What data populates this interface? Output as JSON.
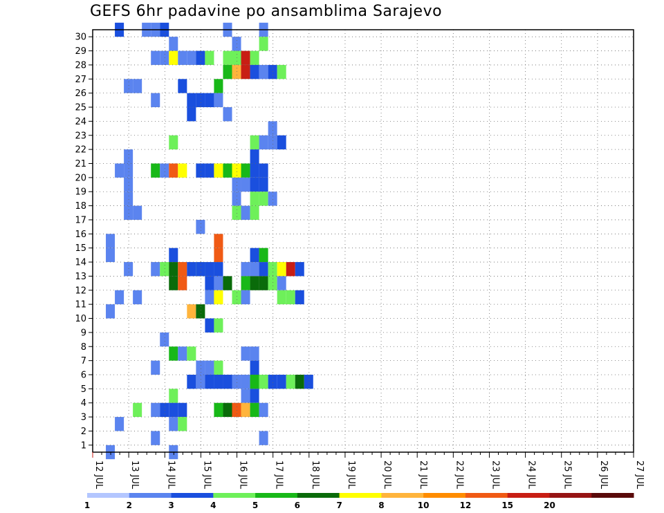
{
  "title": "GEFS 6hr padavine po ansamblima Sarajevo",
  "chart_data": {
    "type": "heatmap",
    "title": "GEFS 6hr padavine po ansamblima Sarajevo",
    "x_tick_labels": [
      "12 JUL",
      "13 JUL",
      "14 JUL",
      "15 JUL",
      "16 JUL",
      "17 JUL",
      "18 JUL",
      "19 JUL",
      "20 JUL",
      "21 JUL",
      "22 JUL",
      "23 JUL",
      "24 JUL",
      "25 JUL",
      "26 JUL",
      "27 JUL"
    ],
    "y_tick_labels": [
      "1",
      "2",
      "3",
      "4",
      "5",
      "6",
      "7",
      "8",
      "9",
      "10",
      "11",
      "12",
      "13",
      "14",
      "15",
      "16",
      "17",
      "18",
      "19",
      "20",
      "21",
      "22",
      "23",
      "24",
      "25",
      "26",
      "27",
      "28",
      "29",
      "30"
    ],
    "time_steps_per_day": 4,
    "grid": true,
    "legend_position": "bottom",
    "legend": {
      "thresholds": [
        "1",
        "2",
        "3",
        "4",
        "5",
        "6",
        "7",
        "8",
        "10",
        "12",
        "15",
        "20"
      ],
      "colors": [
        "#b3c6ff",
        "#5b84ef",
        "#1a4fde",
        "#6ef05a",
        "#18b818",
        "#0a6b0a",
        "#ffff00",
        "#ffb43c",
        "#ff8c00",
        "#f05a14",
        "#c81e14",
        "#961414",
        "#5a0a0a"
      ]
    },
    "cells": [
      [
        2,
        30,
        2
      ],
      [
        5,
        30,
        1
      ],
      [
        6,
        30,
        1
      ],
      [
        7,
        30,
        2
      ],
      [
        14,
        30,
        1
      ],
      [
        18,
        30,
        1
      ],
      [
        8,
        29,
        1
      ],
      [
        15,
        29,
        1
      ],
      [
        18,
        29,
        3
      ],
      [
        6,
        28,
        1
      ],
      [
        7,
        28,
        1
      ],
      [
        8,
        28,
        6
      ],
      [
        9,
        28,
        1
      ],
      [
        10,
        28,
        1
      ],
      [
        11,
        28,
        2
      ],
      [
        12,
        28,
        3
      ],
      [
        14,
        28,
        3
      ],
      [
        15,
        28,
        3
      ],
      [
        16,
        28,
        10
      ],
      [
        17,
        28,
        3
      ],
      [
        14,
        27,
        4
      ],
      [
        15,
        27,
        7
      ],
      [
        16,
        27,
        10
      ],
      [
        17,
        27,
        2
      ],
      [
        18,
        27,
        1
      ],
      [
        19,
        27,
        2
      ],
      [
        20,
        27,
        3
      ],
      [
        3,
        26,
        1
      ],
      [
        4,
        26,
        1
      ],
      [
        9,
        26,
        2
      ],
      [
        13,
        26,
        4
      ],
      [
        6,
        25,
        1
      ],
      [
        10,
        25,
        2
      ],
      [
        11,
        25,
        2
      ],
      [
        12,
        25,
        2
      ],
      [
        13,
        25,
        1
      ],
      [
        10,
        24,
        2
      ],
      [
        14,
        24,
        1
      ],
      [
        19,
        23,
        1
      ],
      [
        8,
        22,
        3
      ],
      [
        17,
        22,
        3
      ],
      [
        18,
        22,
        1
      ],
      [
        19,
        22,
        1
      ],
      [
        20,
        22,
        2
      ],
      [
        3,
        21,
        1
      ],
      [
        17,
        21,
        2
      ],
      [
        2,
        20,
        1
      ],
      [
        3,
        20,
        1
      ],
      [
        6,
        20,
        4
      ],
      [
        7,
        20,
        1
      ],
      [
        8,
        20,
        9
      ],
      [
        9,
        20,
        6
      ],
      [
        11,
        20,
        2
      ],
      [
        12,
        20,
        2
      ],
      [
        13,
        20,
        6
      ],
      [
        14,
        20,
        4
      ],
      [
        15,
        20,
        6
      ],
      [
        16,
        20,
        4
      ],
      [
        17,
        20,
        2
      ],
      [
        18,
        20,
        2
      ],
      [
        3,
        19,
        1
      ],
      [
        15,
        19,
        1
      ],
      [
        16,
        19,
        1
      ],
      [
        17,
        19,
        2
      ],
      [
        18,
        19,
        2
      ],
      [
        3,
        18,
        1
      ],
      [
        15,
        18,
        1
      ],
      [
        17,
        18,
        3
      ],
      [
        18,
        18,
        3
      ],
      [
        19,
        18,
        1
      ],
      [
        3,
        17,
        1
      ],
      [
        4,
        17,
        1
      ],
      [
        15,
        17,
        3
      ],
      [
        16,
        17,
        1
      ],
      [
        17,
        17,
        3
      ],
      [
        11,
        16,
        1
      ],
      [
        1,
        15,
        1
      ],
      [
        13,
        15,
        9
      ],
      [
        1,
        14,
        1
      ],
      [
        8,
        14,
        2
      ],
      [
        13,
        14,
        9
      ],
      [
        17,
        14,
        2
      ],
      [
        18,
        14,
        4
      ],
      [
        3,
        13,
        1
      ],
      [
        6,
        13,
        1
      ],
      [
        7,
        13,
        3
      ],
      [
        8,
        13,
        5
      ],
      [
        9,
        13,
        9
      ],
      [
        10,
        13,
        2
      ],
      [
        11,
        13,
        3
      ],
      [
        11,
        13,
        2
      ],
      [
        12,
        13,
        2
      ],
      [
        13,
        13,
        2
      ],
      [
        16,
        13,
        1
      ],
      [
        17,
        13,
        1
      ],
      [
        18,
        13,
        2
      ],
      [
        19,
        13,
        3
      ],
      [
        20,
        13,
        6
      ],
      [
        21,
        13,
        10
      ],
      [
        22,
        13,
        2
      ],
      [
        8,
        12,
        5
      ],
      [
        9,
        12,
        9
      ],
      [
        12,
        12,
        2
      ],
      [
        13,
        12,
        1
      ],
      [
        14,
        12,
        5
      ],
      [
        16,
        12,
        4
      ],
      [
        17,
        12,
        5
      ],
      [
        18,
        12,
        5
      ],
      [
        19,
        12,
        3
      ],
      [
        20,
        12,
        1
      ],
      [
        2,
        11,
        1
      ],
      [
        4,
        11,
        1
      ],
      [
        12,
        11,
        1
      ],
      [
        13,
        11,
        6
      ],
      [
        15,
        11,
        3
      ],
      [
        16,
        11,
        1
      ],
      [
        20,
        11,
        3
      ],
      [
        21,
        11,
        3
      ],
      [
        22,
        11,
        2
      ],
      [
        1,
        10,
        1
      ],
      [
        10,
        10,
        7
      ],
      [
        11,
        10,
        5
      ],
      [
        12,
        9,
        2
      ],
      [
        13,
        9,
        3
      ],
      [
        7,
        8,
        1
      ],
      [
        8,
        7,
        4
      ],
      [
        9,
        7,
        1
      ],
      [
        10,
        7,
        3
      ],
      [
        16,
        7,
        1
      ],
      [
        17,
        7,
        1
      ],
      [
        6,
        6,
        1
      ],
      [
        11,
        6,
        1
      ],
      [
        12,
        6,
        1
      ],
      [
        13,
        6,
        3
      ],
      [
        17,
        6,
        2
      ],
      [
        10,
        5,
        2
      ],
      [
        11,
        5,
        1
      ],
      [
        12,
        5,
        2
      ],
      [
        13,
        5,
        2
      ],
      [
        14,
        5,
        2
      ],
      [
        15,
        5,
        1
      ],
      [
        16,
        5,
        1
      ],
      [
        17,
        5,
        4
      ],
      [
        18,
        5,
        3
      ],
      [
        19,
        5,
        2
      ],
      [
        20,
        5,
        2
      ],
      [
        21,
        5,
        3
      ],
      [
        22,
        5,
        5
      ],
      [
        23,
        5,
        2
      ],
      [
        8,
        4,
        3
      ],
      [
        16,
        4,
        1
      ],
      [
        17,
        4,
        2
      ],
      [
        4,
        3,
        3
      ],
      [
        6,
        3,
        1
      ],
      [
        7,
        3,
        2
      ],
      [
        8,
        3,
        2
      ],
      [
        9,
        3,
        2
      ],
      [
        13,
        3,
        4
      ],
      [
        14,
        3,
        5
      ],
      [
        15,
        3,
        9
      ],
      [
        16,
        3,
        7
      ],
      [
        17,
        3,
        4
      ],
      [
        18,
        3,
        1
      ],
      [
        2,
        2,
        1
      ],
      [
        8,
        2,
        1
      ],
      [
        9,
        2,
        3
      ],
      [
        6,
        1,
        1
      ],
      [
        18,
        1,
        1
      ],
      [
        1,
        0,
        1
      ],
      [
        8,
        0,
        1
      ]
    ]
  }
}
